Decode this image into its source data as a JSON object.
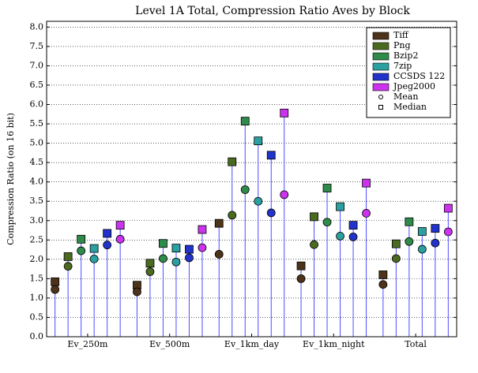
{
  "chart_data": {
    "type": "stem",
    "title": "Level 1A Total, Compression Ratio Aves by Block",
    "y_label": "Compression Ratio (on 16 bit)",
    "categories": [
      "Ev_250m",
      "Ev_500m",
      "Ev_1km_day",
      "Ev_1km_night",
      "Total"
    ],
    "series": [
      {
        "name": "Tiff",
        "color": "#4d3319",
        "mean": [
          1.22,
          1.16,
          2.13,
          1.5,
          1.35
        ],
        "median": [
          1.42,
          1.33,
          2.93,
          1.83,
          1.6
        ]
      },
      {
        "name": "Png",
        "color": "#4a6b1f",
        "mean": [
          1.82,
          1.68,
          3.14,
          2.38,
          2.02
        ],
        "median": [
          2.07,
          1.9,
          4.52,
          3.1,
          2.4
        ]
      },
      {
        "name": "Bzip2",
        "color": "#2e8b4a",
        "mean": [
          2.22,
          2.02,
          3.8,
          2.96,
          2.46
        ],
        "median": [
          2.52,
          2.41,
          5.57,
          3.84,
          2.97
        ]
      },
      {
        "name": "7zip",
        "color": "#2aa0a0",
        "mean": [
          2.01,
          1.93,
          3.5,
          2.6,
          2.26
        ],
        "median": [
          2.28,
          2.29,
          5.06,
          3.36,
          2.72
        ]
      },
      {
        "name": "CCSDS 122",
        "color": "#2233cc",
        "mean": [
          2.37,
          2.04,
          3.2,
          2.58,
          2.42
        ],
        "median": [
          2.67,
          2.26,
          4.69,
          2.88,
          2.8
        ]
      },
      {
        "name": "Jpeg2000",
        "color": "#cc33ee",
        "mean": [
          2.52,
          2.3,
          3.67,
          3.19,
          2.71
        ],
        "median": [
          2.88,
          2.77,
          5.78,
          3.97,
          3.32
        ]
      }
    ],
    "markers": [
      {
        "name": "Mean",
        "shape": "circle"
      },
      {
        "name": "Median",
        "shape": "square"
      }
    ],
    "stem_color": "#4d4dff",
    "ylim": [
      0,
      8.15
    ],
    "yticks": [
      {
        "value": 0,
        "label": "0.0"
      },
      0.5,
      {
        "value": 1,
        "label": "1.0"
      },
      1.5,
      {
        "value": 2,
        "label": "2.0"
      },
      2.5,
      {
        "value": 3,
        "label": "3.0"
      },
      3.5,
      {
        "value": 4,
        "label": "4.0"
      },
      4.5,
      {
        "value": 5,
        "label": "5.0"
      },
      5.5,
      {
        "value": 6,
        "label": "6.0"
      },
      6.5,
      {
        "value": 7,
        "label": "7.0"
      },
      7.5,
      {
        "value": 8,
        "label": "8.0"
      }
    ],
    "grid": true,
    "legend": "upper right"
  }
}
